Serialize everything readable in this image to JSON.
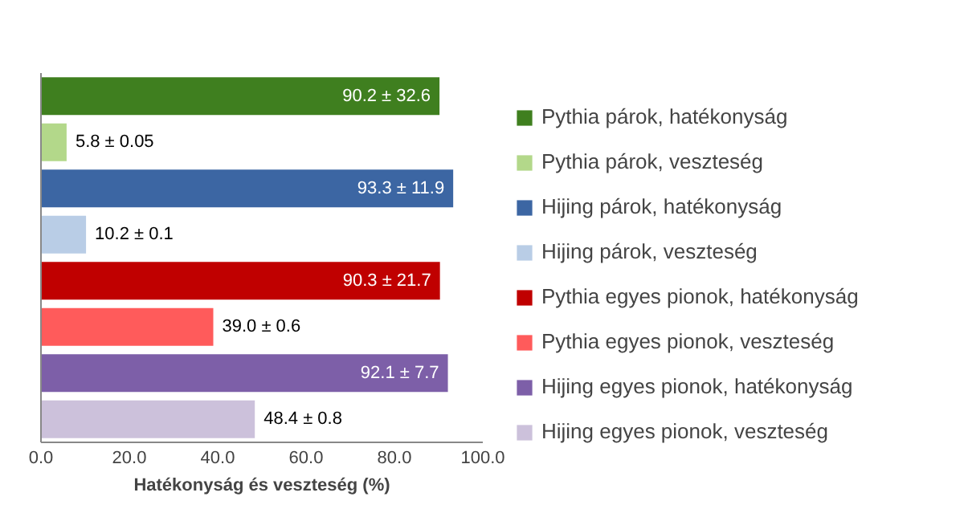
{
  "chart_data": {
    "type": "bar",
    "orientation": "horizontal",
    "xlabel": "Hatékonyság és veszteség (%)",
    "categories": [
      null,
      null,
      null,
      null,
      null,
      null,
      null,
      null
    ],
    "xlim": [
      0,
      100
    ],
    "xticks": [
      {
        "value": 0,
        "label": "0.0"
      },
      {
        "value": 20,
        "label": "20.0"
      },
      {
        "value": 40,
        "label": "40.0"
      },
      {
        "value": 60,
        "label": "60.0"
      },
      {
        "value": 80,
        "label": "80.0"
      },
      {
        "value": 100,
        "label": "100.0"
      }
    ],
    "grid": false,
    "legend": "right",
    "tick_labels": "x",
    "series": [
      {
        "name": "Pythia párok, hatékonyság",
        "color": "#3f7f1f",
        "values": [
          90.2,
          null,
          null,
          null,
          null,
          null,
          null,
          null
        ],
        "value_labels": [
          "90.2 ± 32.6",
          null,
          null,
          null,
          null,
          null,
          null,
          null
        ]
      },
      {
        "name": "Pythia párok, veszteség",
        "color": "#b3d88a",
        "values": [
          null,
          5.8,
          null,
          null,
          null,
          null,
          null,
          null
        ],
        "value_labels": [
          null,
          "5.8 ± 0.05",
          null,
          null,
          null,
          null,
          null,
          null
        ]
      },
      {
        "name": "Hijing párok, hatékonyság",
        "color": "#3c66a3",
        "values": [
          null,
          null,
          93.3,
          null,
          null,
          null,
          null,
          null
        ],
        "value_labels": [
          null,
          null,
          "93.3 ± 11.9",
          null,
          null,
          null,
          null,
          null
        ]
      },
      {
        "name": "Hijing párok, veszteség",
        "color": "#b9cde6",
        "values": [
          null,
          null,
          null,
          10.2,
          null,
          null,
          null,
          null
        ],
        "value_labels": [
          null,
          null,
          null,
          "10.2 ± 0.1",
          null,
          null,
          null,
          null
        ]
      },
      {
        "name": "Pythia egyes pionok, hatékonyság",
        "color": "#c00000",
        "values": [
          null,
          null,
          null,
          null,
          90.3,
          null,
          null,
          null
        ],
        "value_labels": [
          null,
          null,
          null,
          null,
          "90.3 ± 21.7",
          null,
          null,
          null
        ]
      },
      {
        "name": "Pythia egyes pionok, veszteség",
        "color": "#ff5b5b",
        "values": [
          null,
          null,
          null,
          null,
          null,
          39.0,
          null,
          null
        ],
        "value_labels": [
          null,
          null,
          null,
          null,
          null,
          "39.0 ± 0.6",
          null,
          null
        ]
      },
      {
        "name": "Hijing egyes pionok, hatékonyság",
        "color": "#7d5fa8",
        "values": [
          null,
          null,
          null,
          null,
          null,
          null,
          92.1,
          null
        ],
        "value_labels": [
          null,
          null,
          null,
          null,
          null,
          null,
          "92.1 ± 7.7",
          null
        ]
      },
      {
        "name": "Hijing egyes pionok, veszteség",
        "color": "#ccc1db",
        "values": [
          null,
          null,
          null,
          null,
          null,
          null,
          null,
          48.4
        ],
        "value_labels": [
          null,
          null,
          null,
          null,
          null,
          null,
          null,
          "48.4 ± 0.8"
        ]
      }
    ]
  }
}
